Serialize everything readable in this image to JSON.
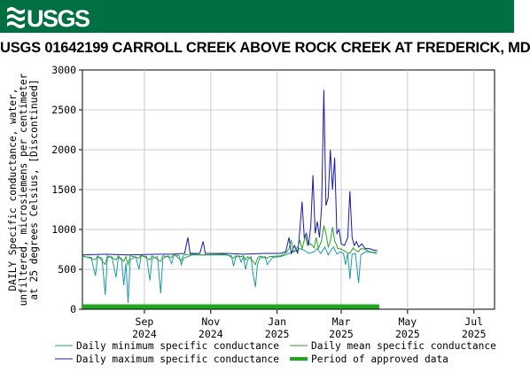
{
  "header": {
    "logo_text": "USGS",
    "title": "USGS 01642199 CARROLL CREEK ABOVE ROCK CREEK AT FREDERICK, MD"
  },
  "colors": {
    "banner": "#006f41",
    "min_series": "#1a9aa8",
    "max_series": "#1a1aa6",
    "mean_series": "#2e9e2e",
    "approved": "#1fa81f",
    "grid": "#cccccc"
  },
  "chart_data": {
    "type": "line",
    "ylabel_lines": [
      "DAILY Specific conductance, water,",
      "unfiltered, microsiemens per centimeter",
      "at 25 degrees Celsius, [Discontinued]"
    ],
    "ylim": [
      0,
      3000
    ],
    "yticks": [
      "0",
      "500",
      "1000",
      "1500",
      "2000",
      "2500",
      "3000"
    ],
    "xlim": [
      "2024-07-06",
      "2025-07-20"
    ],
    "xticks": [
      {
        "date": "2024-09-01",
        "label": [
          "Sep",
          "2024"
        ]
      },
      {
        "date": "2024-11-01",
        "label": [
          "Nov",
          "2024"
        ]
      },
      {
        "date": "2025-01-01",
        "label": [
          "Jan",
          "2025"
        ]
      },
      {
        "date": "2025-03-01",
        "label": [
          "Mar",
          "2025"
        ]
      },
      {
        "date": "2025-05-01",
        "label": [
          "May",
          "2025"
        ]
      },
      {
        "date": "2025-07-01",
        "label": [
          "Jul",
          "2025"
        ]
      }
    ],
    "grid": true,
    "legend_position": "bottom",
    "series": [
      {
        "name": "Daily minimum specific conductance",
        "key": "min",
        "points": [
          [
            "2024-07-06",
            660
          ],
          [
            "2024-07-14",
            650
          ],
          [
            "2024-07-18",
            420
          ],
          [
            "2024-07-20",
            660
          ],
          [
            "2024-07-24",
            640
          ],
          [
            "2024-07-27",
            180
          ],
          [
            "2024-07-29",
            650
          ],
          [
            "2024-08-02",
            660
          ],
          [
            "2024-08-06",
            400
          ],
          [
            "2024-08-08",
            650
          ],
          [
            "2024-08-11",
            620
          ],
          [
            "2024-08-13",
            300
          ],
          [
            "2024-08-15",
            580
          ],
          [
            "2024-08-17",
            80
          ],
          [
            "2024-08-19",
            620
          ],
          [
            "2024-08-24",
            660
          ],
          [
            "2024-08-27",
            500
          ],
          [
            "2024-08-29",
            670
          ],
          [
            "2024-09-03",
            660
          ],
          [
            "2024-09-06",
            360
          ],
          [
            "2024-09-08",
            640
          ],
          [
            "2024-09-13",
            660
          ],
          [
            "2024-09-16",
            200
          ],
          [
            "2024-09-18",
            640
          ],
          [
            "2024-09-23",
            670
          ],
          [
            "2024-09-26",
            570
          ],
          [
            "2024-09-28",
            680
          ],
          [
            "2024-10-03",
            670
          ],
          [
            "2024-10-05",
            560
          ],
          [
            "2024-10-07",
            640
          ],
          [
            "2024-10-15",
            680
          ],
          [
            "2024-11-15",
            680
          ],
          [
            "2024-11-20",
            670
          ],
          [
            "2024-11-22",
            540
          ],
          [
            "2024-11-24",
            650
          ],
          [
            "2024-11-27",
            670
          ],
          [
            "2024-11-29",
            590
          ],
          [
            "2024-12-01",
            660
          ],
          [
            "2024-12-03",
            500
          ],
          [
            "2024-12-05",
            620
          ],
          [
            "2024-12-08",
            660
          ],
          [
            "2024-12-10",
            430
          ],
          [
            "2024-12-12",
            280
          ],
          [
            "2024-12-14",
            560
          ],
          [
            "2024-12-16",
            640
          ],
          [
            "2024-12-21",
            660
          ],
          [
            "2024-12-23",
            560
          ],
          [
            "2024-12-25",
            600
          ],
          [
            "2024-12-28",
            650
          ],
          [
            "2025-01-04",
            660
          ],
          [
            "2025-01-09",
            680
          ],
          [
            "2025-01-12",
            700
          ],
          [
            "2025-01-17",
            720
          ],
          [
            "2025-01-22",
            760
          ],
          [
            "2025-01-26",
            740
          ],
          [
            "2025-01-30",
            700
          ],
          [
            "2025-02-04",
            720
          ],
          [
            "2025-02-07",
            760
          ],
          [
            "2025-02-10",
            700
          ],
          [
            "2025-02-14",
            780
          ],
          [
            "2025-02-17",
            680
          ],
          [
            "2025-02-20",
            750
          ],
          [
            "2025-02-22",
            780
          ],
          [
            "2025-02-25",
            690
          ],
          [
            "2025-02-28",
            720
          ],
          [
            "2025-03-03",
            700
          ],
          [
            "2025-03-05",
            560
          ],
          [
            "2025-03-07",
            700
          ],
          [
            "2025-03-09",
            380
          ],
          [
            "2025-03-11",
            690
          ],
          [
            "2025-03-14",
            700
          ],
          [
            "2025-03-17",
            330
          ],
          [
            "2025-03-19",
            680
          ],
          [
            "2025-03-23",
            720
          ],
          [
            "2025-03-26",
            720
          ],
          [
            "2025-03-29",
            720
          ],
          [
            "2025-04-01",
            700
          ],
          [
            "2025-04-03",
            700
          ]
        ]
      },
      {
        "name": "Daily mean specific conductance",
        "key": "mean",
        "points": [
          [
            "2024-07-06",
            670
          ],
          [
            "2024-07-18",
            620
          ],
          [
            "2024-07-20",
            670
          ],
          [
            "2024-07-27",
            560
          ],
          [
            "2024-07-29",
            670
          ],
          [
            "2024-08-06",
            620
          ],
          [
            "2024-08-08",
            670
          ],
          [
            "2024-08-13",
            600
          ],
          [
            "2024-08-15",
            660
          ],
          [
            "2024-08-17",
            560
          ],
          [
            "2024-08-19",
            670
          ],
          [
            "2024-08-27",
            640
          ],
          [
            "2024-08-29",
            680
          ],
          [
            "2024-09-06",
            620
          ],
          [
            "2024-09-08",
            670
          ],
          [
            "2024-09-16",
            600
          ],
          [
            "2024-09-18",
            670
          ],
          [
            "2024-09-26",
            650
          ],
          [
            "2024-09-28",
            690
          ],
          [
            "2024-10-05",
            610
          ],
          [
            "2024-10-07",
            680
          ],
          [
            "2024-10-15",
            690
          ],
          [
            "2024-10-24",
            680
          ],
          [
            "2024-11-15",
            690
          ],
          [
            "2024-11-22",
            640
          ],
          [
            "2024-11-24",
            670
          ],
          [
            "2024-11-29",
            660
          ],
          [
            "2024-12-01",
            670
          ],
          [
            "2024-12-03",
            620
          ],
          [
            "2024-12-05",
            660
          ],
          [
            "2024-12-10",
            600
          ],
          [
            "2024-12-12",
            560
          ],
          [
            "2024-12-14",
            640
          ],
          [
            "2024-12-16",
            665
          ],
          [
            "2024-12-23",
            640
          ],
          [
            "2024-12-25",
            660
          ],
          [
            "2025-01-04",
            670
          ],
          [
            "2025-01-09",
            700
          ],
          [
            "2025-01-12",
            760
          ],
          [
            "2025-01-14",
            870
          ],
          [
            "2025-01-16",
            720
          ],
          [
            "2025-01-20",
            780
          ],
          [
            "2025-01-22",
            860
          ],
          [
            "2025-01-24",
            760
          ],
          [
            "2025-01-27",
            920
          ],
          [
            "2025-01-29",
            800
          ],
          [
            "2025-02-01",
            820
          ],
          [
            "2025-02-04",
            770
          ],
          [
            "2025-02-06",
            900
          ],
          [
            "2025-02-08",
            760
          ],
          [
            "2025-02-11",
            860
          ],
          [
            "2025-02-13",
            1050
          ],
          [
            "2025-02-15",
            950
          ],
          [
            "2025-02-17",
            780
          ],
          [
            "2025-02-19",
            850
          ],
          [
            "2025-02-21",
            1030
          ],
          [
            "2025-02-23",
            860
          ],
          [
            "2025-02-26",
            760
          ],
          [
            "2025-02-28",
            760
          ],
          [
            "2025-03-03",
            740
          ],
          [
            "2025-03-05",
            720
          ],
          [
            "2025-03-09",
            700
          ],
          [
            "2025-03-12",
            770
          ],
          [
            "2025-03-14",
            740
          ],
          [
            "2025-03-17",
            720
          ],
          [
            "2025-03-19",
            760
          ],
          [
            "2025-03-23",
            750
          ],
          [
            "2025-03-26",
            730
          ],
          [
            "2025-03-29",
            710
          ],
          [
            "2025-04-03",
            720
          ]
        ]
      },
      {
        "name": "Daily maximum specific conductance",
        "key": "max",
        "points": [
          [
            "2024-07-06",
            680
          ],
          [
            "2024-07-27",
            690
          ],
          [
            "2024-08-17",
            680
          ],
          [
            "2024-09-13",
            690
          ],
          [
            "2024-09-26",
            690
          ],
          [
            "2024-10-08",
            700
          ],
          [
            "2024-10-11",
            900
          ],
          [
            "2024-10-13",
            700
          ],
          [
            "2024-10-22",
            700
          ],
          [
            "2024-10-25",
            850
          ],
          [
            "2024-10-27",
            700
          ],
          [
            "2024-11-15",
            700
          ],
          [
            "2024-12-01",
            690
          ],
          [
            "2024-12-20",
            700
          ],
          [
            "2025-01-04",
            700
          ],
          [
            "2025-01-09",
            720
          ],
          [
            "2025-01-12",
            900
          ],
          [
            "2025-01-14",
            700
          ],
          [
            "2025-01-17",
            800
          ],
          [
            "2025-01-20",
            700
          ],
          [
            "2025-01-22",
            1000
          ],
          [
            "2025-01-24",
            1350
          ],
          [
            "2025-01-26",
            900
          ],
          [
            "2025-01-28",
            950
          ],
          [
            "2025-01-30",
            800
          ],
          [
            "2025-02-01",
            1050
          ],
          [
            "2025-02-03",
            1680
          ],
          [
            "2025-02-05",
            950
          ],
          [
            "2025-02-07",
            1100
          ],
          [
            "2025-02-09",
            900
          ],
          [
            "2025-02-11",
            1300
          ],
          [
            "2025-02-13",
            2750
          ],
          [
            "2025-02-15",
            1300
          ],
          [
            "2025-02-17",
            1400
          ],
          [
            "2025-02-19",
            2000
          ],
          [
            "2025-02-21",
            1500
          ],
          [
            "2025-02-23",
            1900
          ],
          [
            "2025-02-25",
            950
          ],
          [
            "2025-02-27",
            1000
          ],
          [
            "2025-03-01",
            820
          ],
          [
            "2025-03-04",
            800
          ],
          [
            "2025-03-07",
            900
          ],
          [
            "2025-03-09",
            1480
          ],
          [
            "2025-03-11",
            900
          ],
          [
            "2025-03-13",
            800
          ],
          [
            "2025-03-15",
            850
          ],
          [
            "2025-03-17",
            780
          ],
          [
            "2025-03-20",
            820
          ],
          [
            "2025-03-23",
            760
          ],
          [
            "2025-03-27",
            760
          ],
          [
            "2025-03-31",
            740
          ],
          [
            "2025-04-03",
            740
          ]
        ]
      }
    ],
    "approved_period": {
      "name": "Period of approved data",
      "start": "2024-07-06",
      "end": "2025-04-05"
    },
    "legend": [
      {
        "key": "min",
        "label": "Daily minimum specific conductance"
      },
      {
        "key": "mean",
        "label": "Daily mean specific conductance"
      },
      {
        "key": "max",
        "label": "Daily maximum specific conductance"
      },
      {
        "key": "approved",
        "label": "Period of approved data"
      }
    ]
  }
}
